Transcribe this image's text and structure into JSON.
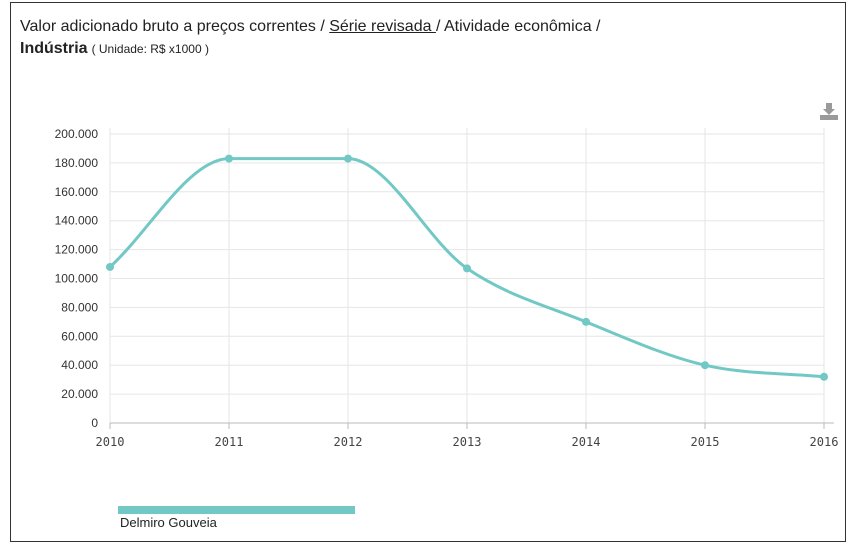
{
  "header": {
    "title_part1": "Valor adicionado bruto a preços correntes / ",
    "title_link": "Série revisada ",
    "title_part2": "/ Atividade econômica /",
    "title_bold": "Indústria",
    "unit": "( Unidade: R$ x1000 )"
  },
  "toolbar": {
    "download_icon": "download-icon"
  },
  "colors": {
    "series": "#72c8c5",
    "grid": "#e6e6e6",
    "axis": "#bbbbbb"
  },
  "chart_data": {
    "type": "line",
    "x": [
      "2010",
      "2011",
      "2012",
      "2013",
      "2014",
      "2015",
      "2016"
    ],
    "series": [
      {
        "name": "Delmiro Gouveia",
        "values": [
          108000,
          183000,
          183000,
          107000,
          70000,
          40000,
          32000
        ]
      }
    ],
    "ylim": [
      0,
      200000
    ],
    "yticks": [
      0,
      20000,
      40000,
      60000,
      80000,
      100000,
      120000,
      140000,
      160000,
      180000,
      200000
    ],
    "ytick_labels": [
      "0",
      "20.000",
      "40.000",
      "60.000",
      "80.000",
      "100.000",
      "120.000",
      "140.000",
      "160.000",
      "180.000",
      "200.000"
    ],
    "grid": true,
    "legend": "bottom-left",
    "title": "Valor adicionado bruto a preços correntes / Série revisada / Atividade econômica / Indústria",
    "ylabel": "",
    "xlabel": ""
  }
}
